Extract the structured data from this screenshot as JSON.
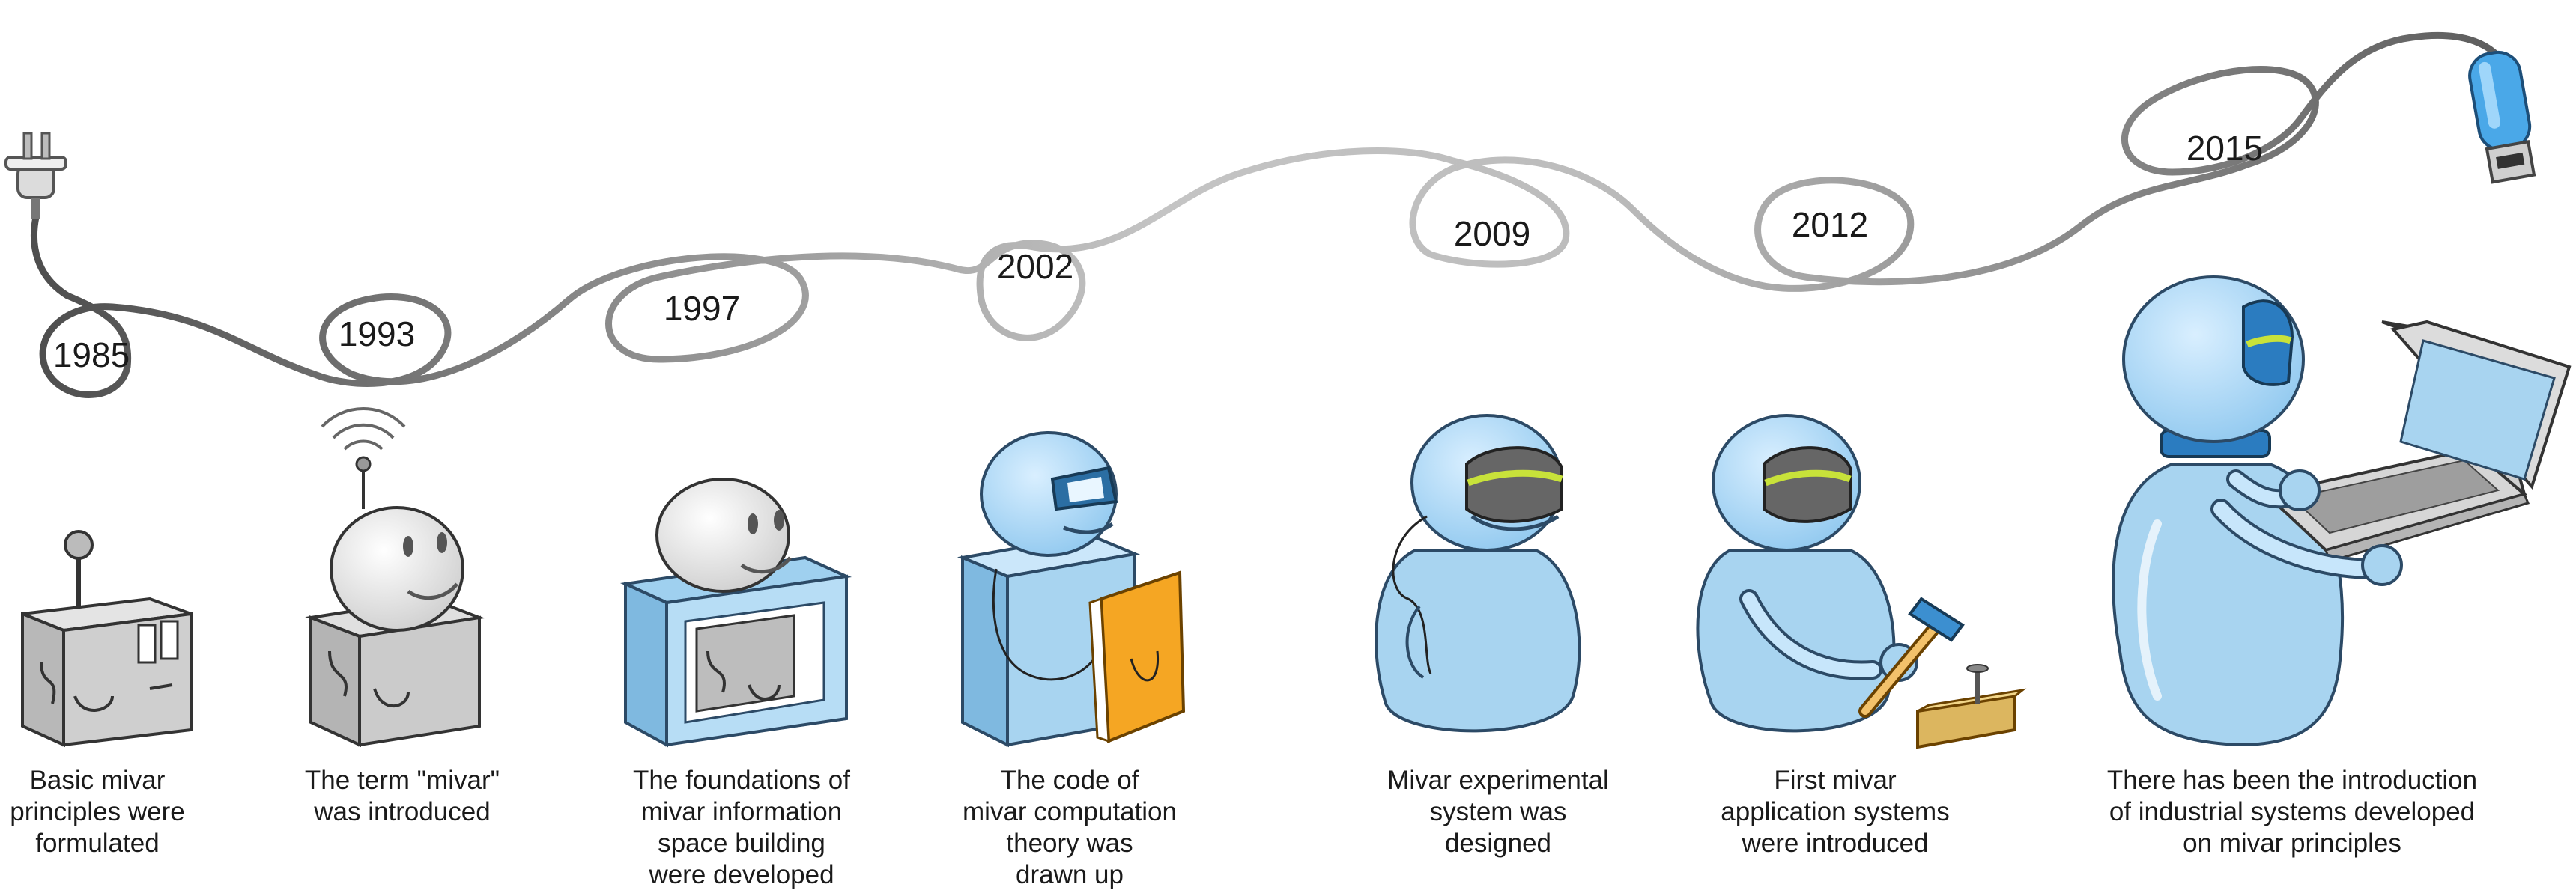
{
  "milestones": [
    {
      "year": "1985",
      "lines": [
        "Basic mivar",
        "principles were",
        "formulated"
      ],
      "illustration": "grey-box-antenna"
    },
    {
      "year": "1993",
      "lines": [
        "The term \"mivar\"",
        "was introduced"
      ],
      "illustration": "robot-head-on-box-with-signal"
    },
    {
      "year": "1997",
      "lines": [
        "The foundations of",
        "mivar information",
        "space building",
        "were developed"
      ],
      "illustration": "robot-head-on-frame-box"
    },
    {
      "year": "2002",
      "lines": [
        "The code of",
        "mivar computation",
        "theory was",
        "drawn up"
      ],
      "illustration": "blue-robot-with-book"
    },
    {
      "year": "2009",
      "lines": [
        "Mivar experimental",
        "system was",
        "designed"
      ],
      "illustration": "blue-robot-visor"
    },
    {
      "year": "2012",
      "lines": [
        "First mivar",
        "application systems",
        "were introduced"
      ],
      "illustration": "blue-robot-hammer"
    },
    {
      "year": "2015",
      "lines": [
        "There has been the introduction",
        "of industrial systems developed",
        "on mivar principles"
      ],
      "illustration": "blue-robot-laptop"
    }
  ],
  "decorations": {
    "cable_start": "plug-icon",
    "cable_end": "usb-connector-icon"
  },
  "colors": {
    "cable_dark": "#4d4d4d",
    "cable_light": "#bdbdbd",
    "robot_blue": "#a8d4f0",
    "robot_outline": "#2c4a66",
    "book": "#f5a623"
  }
}
